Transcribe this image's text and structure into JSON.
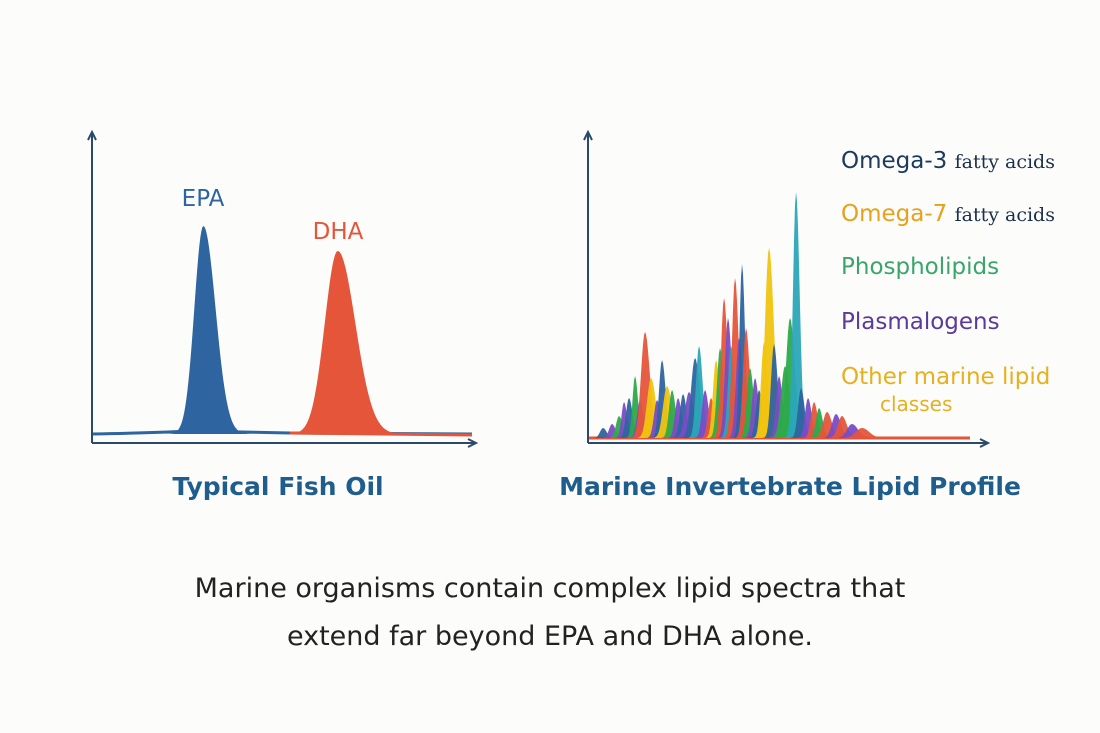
{
  "left_panel": {
    "title": "Typical Fish Oil",
    "peaks": [
      {
        "label": "EPA",
        "color": "#2e64a0",
        "position": 0.29,
        "height": 1.0
      },
      {
        "label": "DHA",
        "color": "#e5553a",
        "position": 0.64,
        "height": 0.88
      }
    ]
  },
  "right_panel": {
    "title": "Marine Invertebrate Lipid Profile",
    "legend": [
      {
        "label": "Omega-3",
        "tail": "fatty acids",
        "color": "#1b3a5e"
      },
      {
        "label": "Omega-7",
        "tail": "fatty acids",
        "color": "#e6a21a"
      },
      {
        "label": "Phospholipids",
        "tail": "",
        "color": "#3aa56b"
      },
      {
        "label": "Plasmalogens",
        "tail": "",
        "color": "#5a3a9a"
      },
      {
        "label": "Other marine lipid",
        "tail": "",
        "label2": "classes",
        "color": "#e6b020"
      }
    ]
  },
  "colors": {
    "axis": "#2b4a6b",
    "blue": "#2e64a0",
    "orange": "#e5553a",
    "yellow": "#f1c40f",
    "green": "#2daa4a",
    "purple": "#7a4cc4",
    "teal": "#2aa6b8"
  },
  "caption": {
    "line1": "Marine organisms contain complex lipid spectra that",
    "line2": "extend far beyond EPA and DHA alone."
  }
}
